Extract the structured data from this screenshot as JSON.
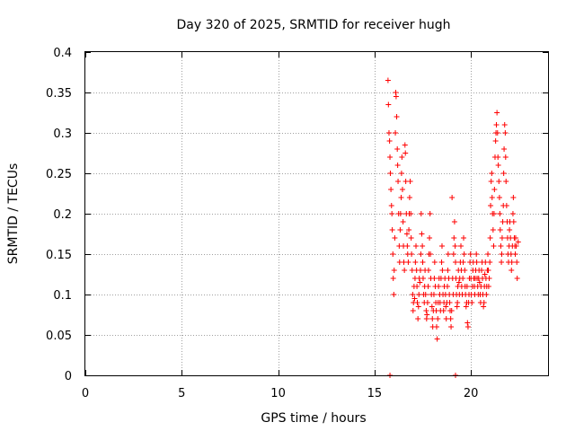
{
  "colors": {
    "point": "#ff0000",
    "grid": "#a0a0a0",
    "axis": "#000000"
  },
  "chart_data": {
    "type": "scatter",
    "title": "Day 320 of 2025, SRMTID for receiver hugh",
    "xlabel": "GPS time / hours",
    "ylabel": "SRMTID / TECUs",
    "xlim": [
      0,
      24
    ],
    "ylim": [
      0,
      0.4
    ],
    "grid": true,
    "legend": "none",
    "marker": "plus",
    "xticks": [
      {
        "value": 0,
        "label": "0"
      },
      {
        "value": 5,
        "label": "5"
      },
      {
        "value": 10,
        "label": "10"
      },
      {
        "value": 15,
        "label": "15"
      },
      {
        "value": 20,
        "label": "20"
      }
    ],
    "yticks": [
      {
        "value": 0,
        "label": "0"
      },
      {
        "value": 0.05,
        "label": "0.05"
      },
      {
        "value": 0.1,
        "label": "0.1"
      },
      {
        "value": 0.15,
        "label": "0.15"
      },
      {
        "value": 0.2,
        "label": "0.2"
      },
      {
        "value": 0.25,
        "label": "0.25"
      },
      {
        "value": 0.3,
        "label": "0.3"
      },
      {
        "value": 0.35,
        "label": "0.35"
      },
      {
        "value": 0.4,
        "label": "0.4"
      }
    ],
    "series": [
      {
        "name": "SRMTID",
        "points": [
          [
            15.7,
            0.365
          ],
          [
            15.72,
            0.335
          ],
          [
            15.75,
            0.3
          ],
          [
            15.78,
            0.29
          ],
          [
            15.8,
            0.27
          ],
          [
            15.82,
            0.25
          ],
          [
            15.85,
            0.23
          ],
          [
            15.88,
            0.21
          ],
          [
            15.9,
            0.2
          ],
          [
            15.92,
            0.18
          ],
          [
            15.95,
            0.15
          ],
          [
            15.97,
            0.12
          ],
          [
            16.0,
            0.1
          ],
          [
            16.02,
            0.13
          ],
          [
            16.05,
            0.17
          ],
          [
            16.08,
            0.3
          ],
          [
            16.1,
            0.35
          ],
          [
            16.12,
            0.345
          ],
          [
            16.15,
            0.32
          ],
          [
            16.18,
            0.28
          ],
          [
            16.2,
            0.26
          ],
          [
            16.22,
            0.24
          ],
          [
            16.25,
            0.2
          ],
          [
            16.28,
            0.16
          ],
          [
            16.3,
            0.14
          ],
          [
            16.33,
            0.18
          ],
          [
            16.35,
            0.2
          ],
          [
            16.38,
            0.22
          ],
          [
            16.4,
            0.25
          ],
          [
            16.42,
            0.27
          ],
          [
            16.45,
            0.23
          ],
          [
            16.48,
            0.19
          ],
          [
            16.5,
            0.16
          ],
          [
            16.52,
            0.14
          ],
          [
            16.55,
            0.13
          ],
          [
            16.58,
            0.285
          ],
          [
            16.6,
            0.275
          ],
          [
            16.62,
            0.24
          ],
          [
            16.65,
            0.2
          ],
          [
            16.68,
            0.175
          ],
          [
            16.7,
            0.16
          ],
          [
            16.72,
            0.15
          ],
          [
            16.75,
            0.14
          ],
          [
            16.78,
            0.18
          ],
          [
            16.8,
            0.2
          ],
          [
            16.82,
            0.22
          ],
          [
            16.85,
            0.24
          ],
          [
            16.88,
            0.2
          ],
          [
            16.9,
            0.17
          ],
          [
            16.92,
            0.15
          ],
          [
            16.95,
            0.13
          ],
          [
            16.98,
            0.1
          ],
          [
            17.0,
            0.08
          ],
          [
            17.02,
            0.09
          ],
          [
            17.05,
            0.11
          ],
          [
            17.08,
            0.095
          ],
          [
            17.1,
            0.12
          ],
          [
            17.12,
            0.14
          ],
          [
            17.15,
            0.16
          ],
          [
            17.18,
            0.13
          ],
          [
            17.2,
            0.11
          ],
          [
            17.22,
            0.09
          ],
          [
            17.25,
            0.07
          ],
          [
            17.28,
            0.085
          ],
          [
            17.3,
            0.1
          ],
          [
            17.32,
            0.12
          ],
          [
            17.35,
            0.115
          ],
          [
            17.38,
            0.13
          ],
          [
            17.4,
            0.15
          ],
          [
            17.42,
            0.2
          ],
          [
            17.45,
            0.175
          ],
          [
            17.48,
            0.16
          ],
          [
            17.5,
            0.14
          ],
          [
            17.52,
            0.12
          ],
          [
            17.55,
            0.1
          ],
          [
            17.58,
            0.09
          ],
          [
            17.6,
            0.11
          ],
          [
            17.62,
            0.13
          ],
          [
            17.65,
            0.1
          ],
          [
            17.68,
            0.08
          ],
          [
            17.7,
            0.07
          ],
          [
            17.72,
            0.075
          ],
          [
            17.75,
            0.09
          ],
          [
            17.78,
            0.11
          ],
          [
            17.8,
            0.13
          ],
          [
            17.82,
            0.15
          ],
          [
            17.85,
            0.17
          ],
          [
            17.88,
            0.2
          ],
          [
            17.9,
            0.15
          ],
          [
            17.92,
            0.12
          ],
          [
            17.95,
            0.1
          ],
          [
            17.98,
            0.085
          ],
          [
            18.0,
            0.07
          ],
          [
            18.02,
            0.06
          ],
          [
            18.05,
            0.08
          ],
          [
            18.08,
            0.1
          ],
          [
            18.1,
            0.12
          ],
          [
            18.12,
            0.14
          ],
          [
            18.15,
            0.11
          ],
          [
            18.18,
            0.09
          ],
          [
            18.2,
            0.08
          ],
          [
            18.22,
            0.06
          ],
          [
            18.25,
            0.045
          ],
          [
            18.28,
            0.07
          ],
          [
            18.3,
            0.09
          ],
          [
            18.32,
            0.11
          ],
          [
            18.35,
            0.12
          ],
          [
            18.38,
            0.1
          ],
          [
            18.4,
            0.09
          ],
          [
            18.42,
            0.08
          ],
          [
            18.45,
            0.12
          ],
          [
            18.48,
            0.14
          ],
          [
            18.5,
            0.16
          ],
          [
            18.52,
            0.13
          ],
          [
            18.55,
            0.1
          ],
          [
            18.58,
            0.08
          ],
          [
            18.6,
            0.09
          ],
          [
            18.62,
            0.11
          ],
          [
            18.65,
            0.12
          ],
          [
            18.68,
            0.1
          ],
          [
            18.7,
            0.085
          ],
          [
            18.72,
            0.07
          ],
          [
            18.75,
            0.09
          ],
          [
            18.78,
            0.11
          ],
          [
            18.8,
            0.13
          ],
          [
            18.82,
            0.15
          ],
          [
            18.85,
            0.12
          ],
          [
            18.88,
            0.1
          ],
          [
            18.9,
            0.09
          ],
          [
            18.92,
            0.08
          ],
          [
            18.95,
            0.07
          ],
          [
            18.97,
            0.06
          ],
          [
            19.0,
            0.08
          ],
          [
            19.02,
            0.22
          ],
          [
            19.05,
            0.12
          ],
          [
            19.08,
            0.1
          ],
          [
            19.1,
            0.15
          ],
          [
            19.12,
            0.17
          ],
          [
            19.15,
            0.19
          ],
          [
            19.18,
            0.16
          ],
          [
            19.2,
            0.14
          ],
          [
            19.22,
            0.12
          ],
          [
            19.25,
            0.1
          ],
          [
            19.28,
            0.085
          ],
          [
            19.3,
            0.09
          ],
          [
            19.32,
            0.11
          ],
          [
            19.35,
            0.13
          ],
          [
            19.38,
            0.115
          ],
          [
            19.4,
            0.1
          ],
          [
            19.42,
            0.12
          ],
          [
            19.45,
            0.14
          ],
          [
            19.48,
            0.16
          ],
          [
            19.5,
            0.13
          ],
          [
            19.52,
            0.11
          ],
          [
            19.55,
            0.1
          ],
          [
            19.58,
            0.12
          ],
          [
            19.6,
            0.14
          ],
          [
            19.62,
            0.17
          ],
          [
            19.65,
            0.15
          ],
          [
            19.68,
            0.13
          ],
          [
            19.7,
            0.11
          ],
          [
            19.72,
            0.1
          ],
          [
            19.75,
            0.085
          ],
          [
            19.78,
            0.09
          ],
          [
            19.8,
            0.11
          ],
          [
            19.82,
            0.065
          ],
          [
            19.85,
            0.06
          ],
          [
            19.88,
            0.09
          ],
          [
            19.9,
            0.1
          ],
          [
            19.92,
            0.12
          ],
          [
            19.95,
            0.14
          ],
          [
            19.98,
            0.15
          ],
          [
            20.0,
            0.12
          ],
          [
            20.02,
            0.1
          ],
          [
            20.05,
            0.09
          ],
          [
            20.08,
            0.11
          ],
          [
            20.1,
            0.13
          ],
          [
            20.12,
            0.14
          ],
          [
            20.15,
            0.12
          ],
          [
            20.18,
            0.11
          ],
          [
            20.2,
            0.1
          ],
          [
            20.22,
            0.12
          ],
          [
            20.25,
            0.13
          ],
          [
            20.28,
            0.15
          ],
          [
            20.3,
            0.14
          ],
          [
            20.32,
            0.12
          ],
          [
            20.35,
            0.11
          ],
          [
            20.38,
            0.1
          ],
          [
            20.4,
            0.12
          ],
          [
            20.42,
            0.13
          ],
          [
            20.45,
            0.115
          ],
          [
            20.48,
            0.1
          ],
          [
            20.5,
            0.09
          ],
          [
            20.52,
            0.11
          ],
          [
            20.55,
            0.13
          ],
          [
            20.58,
            0.14
          ],
          [
            20.6,
            0.12
          ],
          [
            20.62,
            0.1
          ],
          [
            20.65,
            0.085
          ],
          [
            20.68,
            0.09
          ],
          [
            20.7,
            0.11
          ],
          [
            20.72,
            0.125
          ],
          [
            20.75,
            0.14
          ],
          [
            20.78,
            0.12
          ],
          [
            20.8,
            0.1
          ],
          [
            20.82,
            0.11
          ],
          [
            20.85,
            0.13
          ],
          [
            20.88,
            0.15
          ],
          [
            20.9,
            0.13
          ],
          [
            20.92,
            0.11
          ],
          [
            20.95,
            0.12
          ],
          [
            20.98,
            0.14
          ],
          [
            21.0,
            0.17
          ],
          [
            21.02,
            0.21
          ],
          [
            21.05,
            0.24
          ],
          [
            21.08,
            0.25
          ],
          [
            21.1,
            0.22
          ],
          [
            21.12,
            0.2
          ],
          [
            21.15,
            0.18
          ],
          [
            21.18,
            0.16
          ],
          [
            21.2,
            0.2
          ],
          [
            21.22,
            0.23
          ],
          [
            21.25,
            0.27
          ],
          [
            21.28,
            0.29
          ],
          [
            21.3,
            0.3
          ],
          [
            21.32,
            0.31
          ],
          [
            21.35,
            0.325
          ],
          [
            21.38,
            0.3
          ],
          [
            21.4,
            0.27
          ],
          [
            21.42,
            0.26
          ],
          [
            21.45,
            0.24
          ],
          [
            21.48,
            0.22
          ],
          [
            21.5,
            0.2
          ],
          [
            21.52,
            0.18
          ],
          [
            21.55,
            0.16
          ],
          [
            21.58,
            0.14
          ],
          [
            21.6,
            0.15
          ],
          [
            21.62,
            0.17
          ],
          [
            21.65,
            0.19
          ],
          [
            21.68,
            0.21
          ],
          [
            21.7,
            0.25
          ],
          [
            21.72,
            0.28
          ],
          [
            21.75,
            0.31
          ],
          [
            21.78,
            0.3
          ],
          [
            21.8,
            0.27
          ],
          [
            21.82,
            0.24
          ],
          [
            21.85,
            0.21
          ],
          [
            21.88,
            0.19
          ],
          [
            21.9,
            0.17
          ],
          [
            21.92,
            0.15
          ],
          [
            21.95,
            0.14
          ],
          [
            21.98,
            0.16
          ],
          [
            22.0,
            0.18
          ],
          [
            22.02,
            0.19
          ],
          [
            22.05,
            0.17
          ],
          [
            22.08,
            0.15
          ],
          [
            22.1,
            0.13
          ],
          [
            22.12,
            0.14
          ],
          [
            22.15,
            0.16
          ],
          [
            22.18,
            0.2
          ],
          [
            22.2,
            0.22
          ],
          [
            22.22,
            0.19
          ],
          [
            22.25,
            0.17
          ],
          [
            22.28,
            0.16
          ],
          [
            22.3,
            0.15
          ],
          [
            22.32,
            0.17
          ],
          [
            22.35,
            0.16
          ],
          [
            22.38,
            0.14
          ],
          [
            22.4,
            0.12
          ],
          [
            22.45,
            0.165
          ],
          [
            15.8,
            0.0
          ],
          [
            19.2,
            0.0
          ]
        ]
      }
    ]
  }
}
